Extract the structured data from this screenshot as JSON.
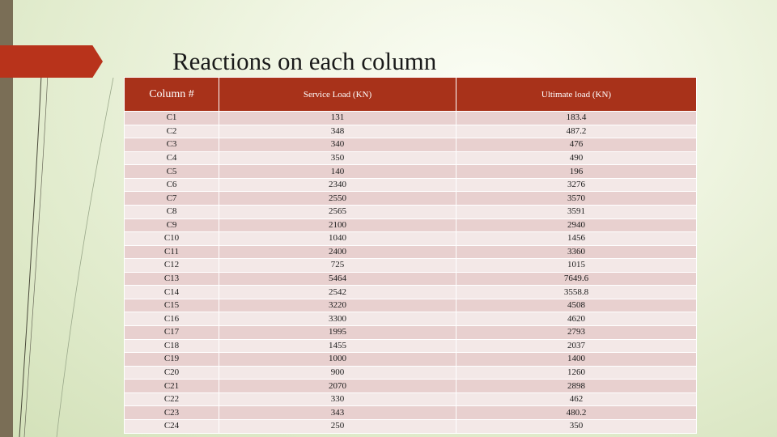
{
  "slide": {
    "title": "Reactions on each column"
  },
  "table": {
    "headers": [
      "Column #",
      "Service Load (KN)",
      "Ultimate load (KN)"
    ],
    "rows": [
      [
        "C1",
        "131",
        "183.4"
      ],
      [
        "C2",
        "348",
        "487.2"
      ],
      [
        "C3",
        "340",
        "476"
      ],
      [
        "C4",
        "350",
        "490"
      ],
      [
        "C5",
        "140",
        "196"
      ],
      [
        "C6",
        "2340",
        "3276"
      ],
      [
        "C7",
        "2550",
        "3570"
      ],
      [
        "C8",
        "2565",
        "3591"
      ],
      [
        "C9",
        "2100",
        "2940"
      ],
      [
        "C10",
        "1040",
        "1456"
      ],
      [
        "C11",
        "2400",
        "3360"
      ],
      [
        "C12",
        "725",
        "1015"
      ],
      [
        "C13",
        "5464",
        "7649.6"
      ],
      [
        "C14",
        "2542",
        "3558.8"
      ],
      [
        "C15",
        "3220",
        "4508"
      ],
      [
        "C16",
        "3300",
        "4620"
      ],
      [
        "C17",
        "1995",
        "2793"
      ],
      [
        "C18",
        "1455",
        "2037"
      ],
      [
        "C19",
        "1000",
        "1400"
      ],
      [
        "C20",
        "900",
        "1260"
      ],
      [
        "C21",
        "2070",
        "2898"
      ],
      [
        "C22",
        "330",
        "462"
      ],
      [
        "C23",
        "343",
        "480.2"
      ],
      [
        "C24",
        "250",
        "350"
      ]
    ]
  },
  "colors": {
    "accent": "#b8331b",
    "header_bg": "#a8321a",
    "row_odd": "#e8d0cf",
    "row_even": "#f3e8e7",
    "left_bar": "#7a6e56"
  }
}
